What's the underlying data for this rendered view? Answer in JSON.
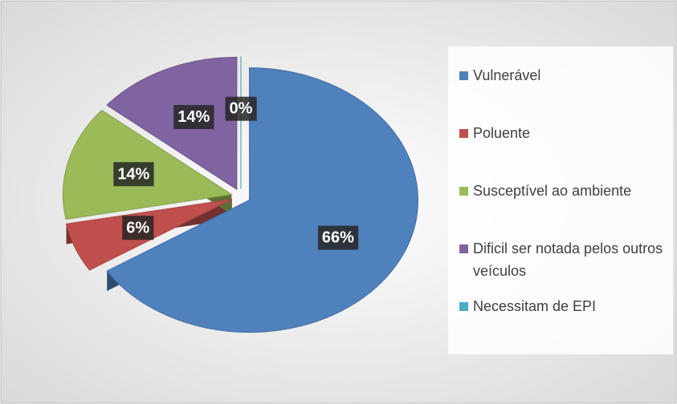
{
  "chart_data": {
    "type": "pie",
    "categories": [
      "Vulnerável",
      "Poluente",
      "Susceptível ao ambiente",
      "Dificil ser notada pelos outros veículos",
      "Necessitam de EPI"
    ],
    "values": [
      66,
      6,
      14,
      14,
      0
    ],
    "value_labels": [
      "66%",
      "6%",
      "14%",
      "14%",
      "0%"
    ],
    "colors": [
      "#4f81bd",
      "#c0504d",
      "#9bbb59",
      "#8064a2",
      "#4bacc6"
    ],
    "legend": "right"
  }
}
